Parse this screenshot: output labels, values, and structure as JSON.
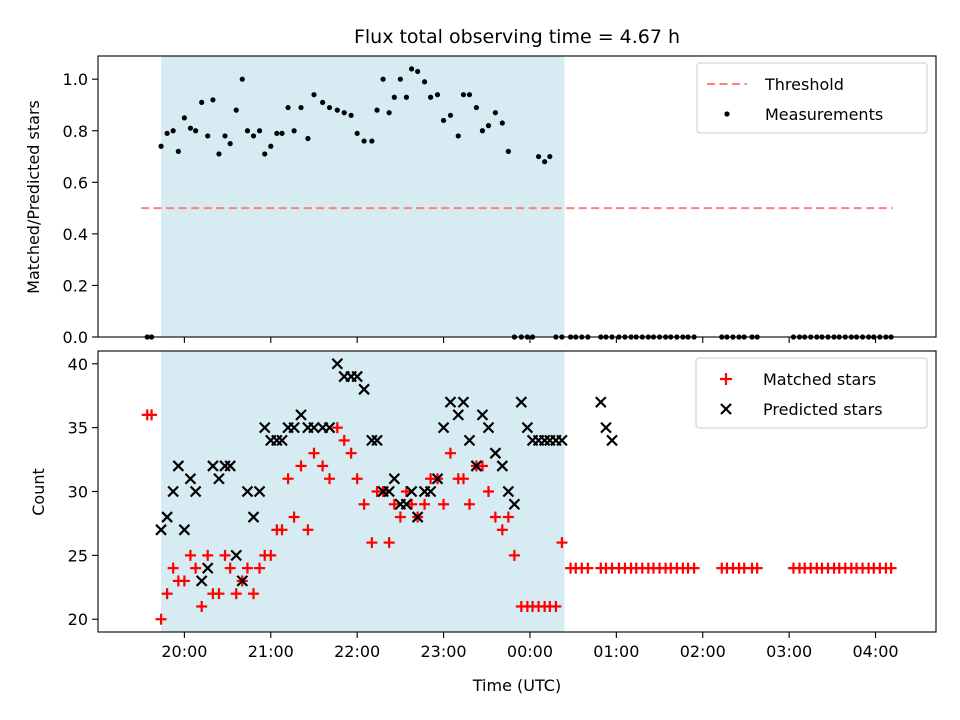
{
  "chart_data": [
    {
      "type": "scatter",
      "title": "Flux total observing time = 4.67 h",
      "xlabel": "",
      "ylabel": "Matched/Predicted stars",
      "xlim_hours": [
        19.0,
        28.7
      ],
      "ylim": [
        0,
        1.09
      ],
      "yticks": [
        0.0,
        0.2,
        0.4,
        0.6,
        0.8,
        1.0
      ],
      "ytick_labels": [
        "0.0",
        "0.2",
        "0.4",
        "0.6",
        "0.8",
        "1.0"
      ],
      "shaded_interval_hours": [
        19.73,
        24.4
      ],
      "shade_color": "#add8e6",
      "threshold": {
        "value": 0.5,
        "x_from": 19.5,
        "x_to": 28.2,
        "color": "#ff7f7f"
      },
      "legend": {
        "position": "top-right",
        "entries": [
          {
            "label": "Threshold",
            "marker": "dashed-line",
            "color": "#ff7f7f"
          },
          {
            "label": "Measurements",
            "marker": "dot",
            "color": "#000000"
          }
        ]
      },
      "series": [
        {
          "name": "Measurements",
          "color": "#000000",
          "x": [
            19.57,
            19.62,
            19.73,
            19.8,
            19.87,
            19.93,
            20.0,
            20.07,
            20.13,
            20.2,
            20.27,
            20.33,
            20.4,
            20.47,
            20.53,
            20.6,
            20.67,
            20.73,
            20.8,
            20.87,
            20.93,
            21.0,
            21.07,
            21.13,
            21.2,
            21.27,
            21.35,
            21.43,
            21.5,
            21.6,
            21.68,
            21.77,
            21.85,
            21.93,
            22.0,
            22.08,
            22.17,
            22.23,
            22.3,
            22.37,
            22.43,
            22.5,
            22.57,
            22.63,
            22.7,
            22.78,
            22.85,
            22.93,
            23.0,
            23.08,
            23.17,
            23.23,
            23.3,
            23.38,
            23.45,
            23.52,
            23.6,
            23.68,
            23.75,
            23.82,
            23.9,
            23.97,
            24.03,
            24.1,
            24.17,
            24.23,
            24.3,
            24.37,
            24.47,
            24.53,
            24.6,
            24.67,
            24.82,
            24.88,
            24.95,
            25.03,
            25.1,
            25.17,
            25.23,
            25.3,
            25.37,
            25.43,
            25.5,
            25.57,
            25.63,
            25.7,
            25.77,
            25.83,
            25.9,
            26.22,
            26.28,
            26.35,
            26.42,
            26.48,
            26.57,
            26.63,
            27.05,
            27.12,
            27.18,
            27.25,
            27.32,
            27.38,
            27.45,
            27.52,
            27.58,
            27.65,
            27.72,
            27.78,
            27.85,
            27.92,
            27.98,
            28.05,
            28.12,
            28.18
          ],
          "y": [
            0,
            0,
            0.74,
            0.79,
            0.8,
            0.72,
            0.85,
            0.81,
            0.8,
            0.91,
            0.78,
            0.92,
            0.71,
            0.78,
            0.75,
            0.88,
            1.0,
            0.8,
            0.78,
            0.8,
            0.71,
            0.74,
            0.79,
            0.79,
            0.89,
            0.8,
            0.89,
            0.77,
            0.94,
            0.91,
            0.89,
            0.88,
            0.87,
            0.86,
            0.79,
            0.76,
            0.76,
            0.88,
            1.0,
            0.87,
            0.93,
            1.0,
            0.93,
            1.04,
            1.03,
            0.99,
            0.93,
            0.94,
            0.84,
            0.86,
            0.78,
            0.94,
            0.94,
            0.89,
            0.8,
            0.82,
            0.87,
            0.83,
            0.72,
            0,
            0,
            0,
            0,
            0.7,
            0.68,
            0.7,
            0,
            0,
            0,
            0,
            0,
            0,
            0,
            0,
            0,
            0,
            0,
            0,
            0,
            0,
            0,
            0,
            0,
            0,
            0,
            0,
            0,
            0,
            0,
            0,
            0,
            0,
            0,
            0,
            0,
            0,
            0,
            0,
            0,
            0,
            0,
            0,
            0,
            0,
            0,
            0,
            0,
            0,
            0,
            0,
            0,
            0,
            0,
            0
          ]
        }
      ]
    },
    {
      "type": "scatter",
      "title": "",
      "xlabel": "Time (UTC)",
      "ylabel": "Count",
      "xlim_hours": [
        19.0,
        28.7
      ],
      "ylim": [
        19,
        41
      ],
      "yticks": [
        20,
        25,
        30,
        35,
        40
      ],
      "ytick_labels": [
        "20",
        "25",
        "30",
        "35",
        "40"
      ],
      "xticks_hours": [
        20,
        21,
        22,
        23,
        24,
        25,
        26,
        27,
        28
      ],
      "xtick_labels": [
        "20:00",
        "21:00",
        "22:00",
        "23:00",
        "00:00",
        "01:00",
        "02:00",
        "03:00",
        "04:00"
      ],
      "shaded_interval_hours": [
        19.73,
        24.4
      ],
      "shade_color": "#add8e6",
      "legend": {
        "position": "top-right",
        "entries": [
          {
            "label": "Matched stars",
            "marker": "plus",
            "color": "#ff0000"
          },
          {
            "label": "Predicted stars",
            "marker": "x",
            "color": "#000000"
          }
        ]
      },
      "series": [
        {
          "name": "Matched stars",
          "color": "#ff0000",
          "x": [
            19.57,
            19.62,
            19.73,
            19.8,
            19.87,
            19.93,
            20.0,
            20.07,
            20.13,
            20.2,
            20.27,
            20.33,
            20.4,
            20.47,
            20.53,
            20.6,
            20.67,
            20.73,
            20.8,
            20.87,
            20.93,
            21.0,
            21.07,
            21.13,
            21.2,
            21.27,
            21.35,
            21.43,
            21.5,
            21.6,
            21.68,
            21.77,
            21.85,
            21.93,
            22.0,
            22.08,
            22.17,
            22.23,
            22.3,
            22.37,
            22.43,
            22.5,
            22.57,
            22.63,
            22.7,
            22.78,
            22.85,
            22.93,
            23.0,
            23.08,
            23.17,
            23.23,
            23.3,
            23.38,
            23.45,
            23.52,
            23.6,
            23.68,
            23.75,
            23.82,
            23.9,
            23.97,
            24.03,
            24.1,
            24.17,
            24.23,
            24.3,
            24.37,
            24.47,
            24.53,
            24.6,
            24.67,
            24.82,
            24.88,
            24.95,
            25.03,
            25.1,
            25.17,
            25.23,
            25.3,
            25.37,
            25.43,
            25.5,
            25.57,
            25.63,
            25.7,
            25.77,
            25.83,
            25.9,
            26.22,
            26.28,
            26.35,
            26.42,
            26.48,
            26.57,
            26.63,
            27.05,
            27.12,
            27.18,
            27.25,
            27.32,
            27.38,
            27.45,
            27.52,
            27.58,
            27.65,
            27.72,
            27.78,
            27.85,
            27.92,
            27.98,
            28.05,
            28.12,
            28.18
          ],
          "y": [
            36,
            36,
            20,
            22,
            24,
            23,
            23,
            25,
            24,
            21,
            25,
            22,
            22,
            25,
            24,
            22,
            23,
            24,
            22,
            24,
            25,
            25,
            27,
            27,
            31,
            28,
            32,
            27,
            33,
            32,
            31,
            35,
            34,
            33,
            31,
            29,
            26,
            30,
            30,
            26,
            29,
            28,
            30,
            29,
            28,
            29,
            31,
            31,
            29,
            33,
            31,
            31,
            29,
            32,
            32,
            30,
            28,
            27,
            28,
            25,
            21,
            21,
            21,
            21,
            21,
            21,
            21,
            26,
            24,
            24,
            24,
            24,
            24,
            24,
            24,
            24,
            24,
            24,
            24,
            24,
            24,
            24,
            24,
            24,
            24,
            24,
            24,
            24,
            24,
            24,
            24,
            24,
            24,
            24,
            24,
            24,
            24,
            24,
            24,
            24,
            24,
            24,
            24,
            24,
            24,
            24,
            24,
            24,
            24,
            24,
            24,
            24,
            24,
            24
          ]
        },
        {
          "name": "Predicted stars",
          "color": "#000000",
          "x": [
            19.73,
            19.8,
            19.87,
            19.93,
            20.0,
            20.07,
            20.13,
            20.2,
            20.27,
            20.33,
            20.4,
            20.47,
            20.53,
            20.6,
            20.67,
            20.73,
            20.8,
            20.87,
            20.93,
            21.0,
            21.07,
            21.13,
            21.2,
            21.27,
            21.35,
            21.43,
            21.5,
            21.6,
            21.68,
            21.77,
            21.85,
            21.93,
            22.0,
            22.08,
            22.17,
            22.23,
            22.3,
            22.37,
            22.43,
            22.5,
            22.57,
            22.63,
            22.7,
            22.78,
            22.85,
            22.93,
            23.0,
            23.08,
            23.17,
            23.23,
            23.3,
            23.38,
            23.45,
            23.52,
            23.6,
            23.68,
            23.75,
            23.82,
            23.9,
            23.97,
            24.03,
            24.1,
            24.17,
            24.23,
            24.3,
            24.37,
            24.82,
            24.88,
            24.95
          ],
          "y": [
            27,
            28,
            30,
            32,
            27,
            31,
            30,
            23,
            24,
            32,
            31,
            32,
            32,
            25,
            23,
            30,
            28,
            30,
            35,
            34,
            34,
            34,
            35,
            35,
            36,
            35,
            35,
            35,
            35,
            40,
            39,
            39,
            39,
            38,
            34,
            34,
            30,
            30,
            31,
            29,
            29,
            30,
            28,
            30,
            30,
            31,
            35,
            37,
            36,
            37,
            34,
            32,
            36,
            35,
            33,
            32,
            30,
            29,
            37,
            35,
            34,
            34,
            34,
            34,
            34,
            34,
            37,
            35,
            34
          ]
        }
      ]
    }
  ]
}
